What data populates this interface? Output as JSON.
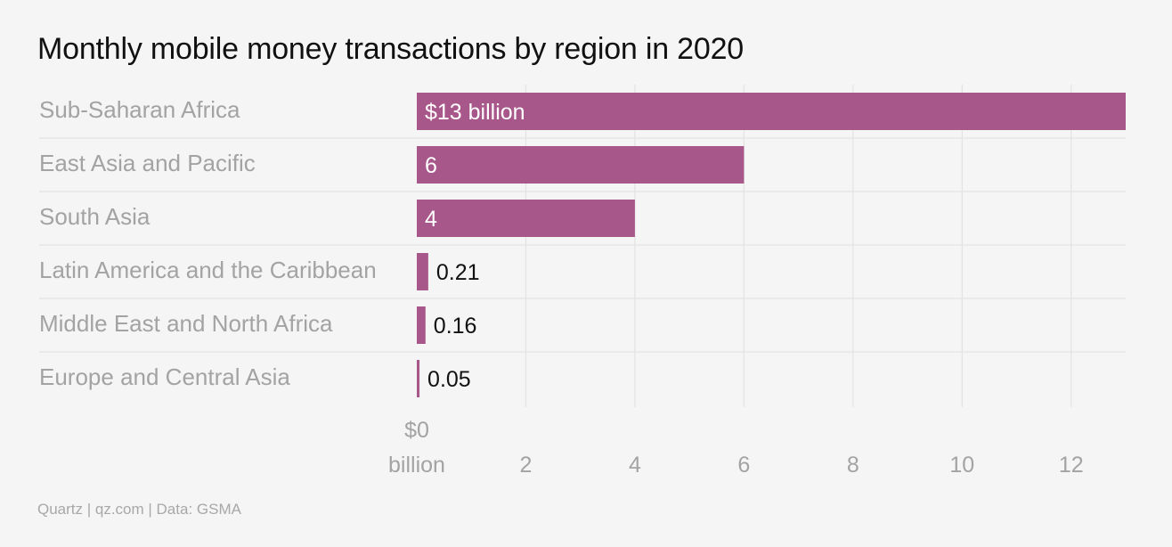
{
  "chart_data": {
    "type": "bar",
    "orientation": "horizontal",
    "title": "Monthly mobile money transactions by region in 2020",
    "categories": [
      "Sub-Saharan Africa",
      "East Asia and Pacific",
      "South Asia",
      "Latin America and the Caribbean",
      "Middle East and North Africa",
      "Europe and Central Asia"
    ],
    "values": [
      13,
      6,
      4,
      0.21,
      0.16,
      0.05
    ],
    "data_labels": [
      "$13 billion",
      "6",
      "4",
      "0.21",
      "0.16",
      "0.05"
    ],
    "xlim": [
      0,
      13
    ],
    "xticks": [
      0,
      2,
      4,
      6,
      8,
      10,
      12
    ],
    "xtick_labels": [
      "$0",
      "2",
      "4",
      "6",
      "8",
      "10",
      "12"
    ],
    "xtick0_unit": "billion",
    "xlabel": "",
    "ylabel": "",
    "grid": true,
    "legend": "none",
    "bar_color": "#a8578a"
  },
  "source": "Quartz | qz.com | Data: GSMA"
}
